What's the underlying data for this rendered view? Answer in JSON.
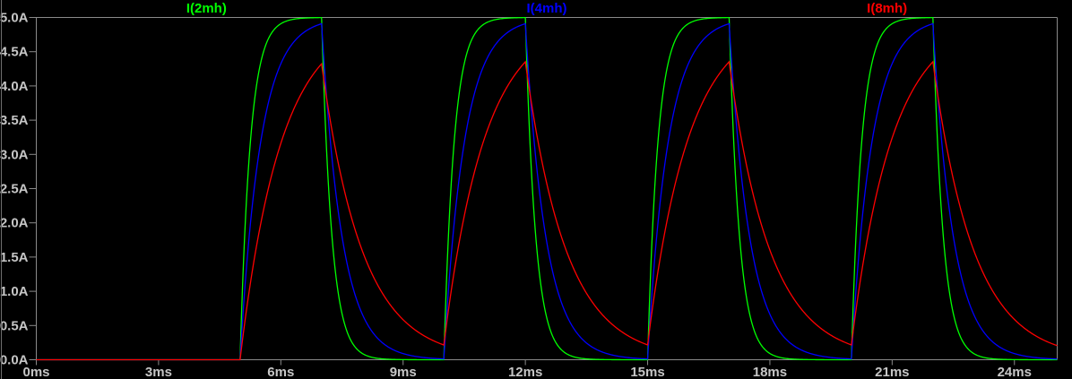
{
  "window": {
    "background": "#000000"
  },
  "colors": {
    "axis_line": "#8a8a8a",
    "axis_text": "#c6c6c6",
    "left_edge": "#6f6f6f"
  },
  "chart_data": {
    "type": "line",
    "titles": [
      {
        "label": "I(2mh)",
        "color": "#00ff00"
      },
      {
        "label": "I(4mh)",
        "color": "#0000ff"
      },
      {
        "label": "I(8mh)",
        "color": "#ff0000"
      }
    ],
    "x_axis": {
      "unit": "ms",
      "tick_labels": [
        "0ms",
        "3ms",
        "6ms",
        "9ms",
        "12ms",
        "15ms",
        "18ms",
        "21ms",
        "24ms"
      ],
      "tick_values_ms": [
        0,
        3,
        6,
        9,
        12,
        15,
        18,
        21,
        24
      ],
      "range_ms": [
        0,
        25.05
      ],
      "grid": "off"
    },
    "y_axis": {
      "unit": "A",
      "tick_labels": [
        "5.0A",
        "4.5A",
        "4.0A",
        "3.5A",
        "3.0A",
        "2.5A",
        "2.0A",
        "1.5A",
        "1.0A",
        "0.5A",
        "0.0A"
      ],
      "tick_values_a": [
        5.0,
        4.5,
        4.0,
        3.5,
        3.0,
        2.5,
        2.0,
        1.5,
        1.0,
        0.5,
        0.0
      ],
      "range_a": [
        0,
        5
      ],
      "grid": "off"
    },
    "stimulus": {
      "type": "pulse",
      "amplitude_a": 5.0,
      "delay_ms": 5.0,
      "on_ms": 2.0,
      "period_ms": 5.0,
      "cycles": 4,
      "sim_end_ms": 25.05
    },
    "series": [
      {
        "name": "I(2mh)",
        "color": "#00ff00",
        "tau_ms": 0.25,
        "peak_a": 5.0,
        "min_between_pulses_a": 0.0
      },
      {
        "name": "I(4mh)",
        "color": "#0000ff",
        "tau_ms": 0.5,
        "peak_a": 4.91,
        "min_between_pulses_a": 0.01
      },
      {
        "name": "I(8mh)",
        "color": "#ff0000",
        "tau_ms": 1.0,
        "peak_a": 4.33,
        "min_between_pulses_a": 0.22
      }
    ],
    "legend_position": "top-inline"
  }
}
